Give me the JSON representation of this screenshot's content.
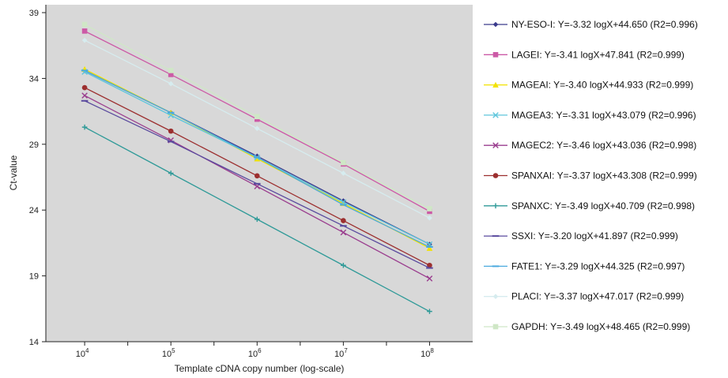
{
  "chart_data": {
    "type": "line",
    "xlabel": "Template cDNA copy number (log-scale)",
    "ylabel": "Ct-value",
    "x_scale": "log",
    "x_ticks": [
      {
        "value": 4,
        "base": "10",
        "exp": "4"
      },
      {
        "value": 5,
        "base": "10",
        "exp": "5"
      },
      {
        "value": 6,
        "base": "10",
        "exp": "6"
      },
      {
        "value": 7,
        "base": "10",
        "exp": "7"
      },
      {
        "value": 8,
        "base": "10",
        "exp": "8"
      }
    ],
    "y_ticks": [
      "14",
      "19",
      "24",
      "29",
      "34",
      "39"
    ],
    "ylim": [
      14,
      39.6
    ],
    "xlim_log10": [
      3.55,
      8.5
    ],
    "grid": false,
    "plot_background": "#d8d8d8",
    "legend_position": "right",
    "x": [
      4,
      5,
      6,
      7,
      8
    ],
    "series": [
      {
        "name": "NY-ESO-I",
        "color": "#3a3a8c",
        "marker": "diamond",
        "label": "NY-ESO-I: Y=-3.32 logX+44.650 (R2=0.996)",
        "values": [
          34.6,
          31.4,
          28.1,
          24.7,
          21.4
        ]
      },
      {
        "name": "LAGEI",
        "color": "#cc5aa6",
        "marker": "square",
        "label": "LAGEI: Y=-3.41 logX+47.841 (R2=0.999)",
        "values": [
          37.6,
          34.3,
          30.9,
          27.5,
          23.9
        ]
      },
      {
        "name": "MAGEAI",
        "color": "#f2e200",
        "marker": "triangle",
        "label": "MAGEAI: Y=-3.40 logX+44.933 (R2=0.999)",
        "values": [
          34.7,
          31.4,
          27.9,
          24.5,
          21.1
        ]
      },
      {
        "name": "MAGEA3",
        "color": "#5ec6dc",
        "marker": "x",
        "label": "MAGEA3: Y=-3.31 logX+43.079 (R2=0.996)",
        "values": [
          34.5,
          31.2,
          28.0,
          24.6,
          21.4
        ]
      },
      {
        "name": "MAGEC2",
        "color": "#9a3d8e",
        "marker": "x",
        "label": "MAGEC2: Y=-3.46 logX+43.036 (R2=0.998)",
        "values": [
          32.7,
          29.3,
          25.8,
          22.3,
          18.8
        ]
      },
      {
        "name": "SPANXAI",
        "color": "#9c2f2f",
        "marker": "circle",
        "label": "SPANXAI: Y=-3.37 logX+43.308 (R2=0.999)",
        "values": [
          33.3,
          30.0,
          26.6,
          23.2,
          19.8
        ]
      },
      {
        "name": "SPANXC",
        "color": "#2f9a98",
        "marker": "plus",
        "label": "SPANXC: Y=-3.49 logX+40.709 (R2=0.998)",
        "values": [
          30.3,
          26.8,
          23.3,
          19.8,
          16.3
        ]
      },
      {
        "name": "SSXI",
        "color": "#5a4a9e",
        "marker": "dash",
        "label": "SSXI: Y=-3.20 logX+41.897 (R2=0.999)",
        "values": [
          32.3,
          29.2,
          26.0,
          22.8,
          19.6
        ]
      },
      {
        "name": "FATE1",
        "color": "#4aa9de",
        "marker": "dash",
        "label": "FATE1: Y=-3.29 logX+44.325 (R2=0.997)",
        "values": [
          34.6,
          31.4,
          28.0,
          24.4,
          21.2
        ]
      },
      {
        "name": "PLACI",
        "color": "#d6ecef",
        "marker": "diamond",
        "label": "PLACI: Y=-3.37 logX+47.017 (R2=0.999)",
        "values": [
          36.9,
          33.6,
          30.2,
          26.8,
          23.4
        ]
      },
      {
        "name": "GAPDH",
        "color": "#cfe7c6",
        "marker": "square",
        "label": "GAPDH: Y=-3.49 logX+48.465 (R2=0.999)",
        "values": [
          38.1,
          34.6,
          31.1,
          27.6,
          24.1
        ]
      }
    ]
  }
}
